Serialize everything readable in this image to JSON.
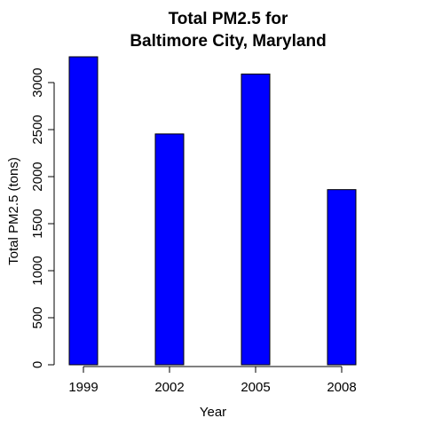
{
  "chart_data": {
    "type": "bar",
    "title_lines": [
      "Total PM2.5 for",
      "Baltimore City, Maryland"
    ],
    "xlabel": "Year",
    "ylabel": "Total PM2.5 (tons)",
    "categories": [
      "1999",
      "2002",
      "2005",
      "2008"
    ],
    "values": [
      3274,
      2454,
      3091,
      1862
    ],
    "yticks": [
      0,
      500,
      1000,
      1500,
      2000,
      2500,
      3000
    ],
    "ylim": [
      0,
      3274
    ],
    "bar_color": "#0000ff",
    "grid": false,
    "legend": "none"
  }
}
